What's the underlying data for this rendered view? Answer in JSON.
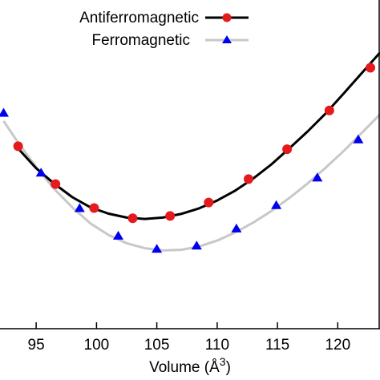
{
  "chart_data": {
    "type": "line",
    "xlabel": "Volume (Å",
    "xlabel_sup": "3",
    "xlabel_close": ")",
    "ylabel": "",
    "xlim": [
      92,
      123.5
    ],
    "ylim": [
      0,
      1
    ],
    "xticks": [
      95,
      100,
      105,
      110,
      115,
      120
    ],
    "legend_position": "top-center",
    "grid": false,
    "series": [
      {
        "name": "Antiferromagnetic",
        "line_color": "#000000",
        "marker": "circle",
        "marker_color": "#e41a1c",
        "points": [
          {
            "x": 93.5,
            "y": 0.555
          },
          {
            "x": 96.6,
            "y": 0.44
          },
          {
            "x": 99.8,
            "y": 0.367
          },
          {
            "x": 103.0,
            "y": 0.336
          },
          {
            "x": 106.1,
            "y": 0.343
          },
          {
            "x": 109.3,
            "y": 0.384
          },
          {
            "x": 112.6,
            "y": 0.455
          },
          {
            "x": 115.8,
            "y": 0.546
          },
          {
            "x": 119.3,
            "y": 0.664
          },
          {
            "x": 122.7,
            "y": 0.794
          }
        ],
        "curve": [
          {
            "x": 93.5,
            "y": 0.548
          },
          {
            "x": 95.0,
            "y": 0.488
          },
          {
            "x": 96.5,
            "y": 0.441
          },
          {
            "x": 98.0,
            "y": 0.4
          },
          {
            "x": 99.5,
            "y": 0.369
          },
          {
            "x": 101.0,
            "y": 0.35
          },
          {
            "x": 102.5,
            "y": 0.338
          },
          {
            "x": 104.0,
            "y": 0.334
          },
          {
            "x": 105.5,
            "y": 0.338
          },
          {
            "x": 107.0,
            "y": 0.349
          },
          {
            "x": 108.5,
            "y": 0.366
          },
          {
            "x": 110.0,
            "y": 0.39
          },
          {
            "x": 111.5,
            "y": 0.42
          },
          {
            "x": 113.0,
            "y": 0.457
          },
          {
            "x": 114.5,
            "y": 0.5
          },
          {
            "x": 116.0,
            "y": 0.549
          },
          {
            "x": 117.5,
            "y": 0.6
          },
          {
            "x": 119.0,
            "y": 0.655
          },
          {
            "x": 120.5,
            "y": 0.716
          },
          {
            "x": 122.0,
            "y": 0.778
          },
          {
            "x": 123.5,
            "y": 0.84
          }
        ]
      },
      {
        "name": "Ferromagnetic",
        "line_color": "#c8c8c8",
        "marker": "triangle",
        "marker_color": "#0000ee",
        "points": [
          {
            "x": 92.3,
            "y": 0.656
          },
          {
            "x": 95.4,
            "y": 0.474
          },
          {
            "x": 98.6,
            "y": 0.366
          },
          {
            "x": 101.8,
            "y": 0.282
          },
          {
            "x": 105.0,
            "y": 0.242
          },
          {
            "x": 108.3,
            "y": 0.252
          },
          {
            "x": 111.6,
            "y": 0.304
          },
          {
            "x": 114.9,
            "y": 0.375
          },
          {
            "x": 118.3,
            "y": 0.459
          },
          {
            "x": 121.7,
            "y": 0.575
          }
        ],
        "curve": [
          {
            "x": 92.3,
            "y": 0.632
          },
          {
            "x": 93.5,
            "y": 0.566
          },
          {
            "x": 95.0,
            "y": 0.492
          },
          {
            "x": 96.5,
            "y": 0.425
          },
          {
            "x": 98.0,
            "y": 0.369
          },
          {
            "x": 99.5,
            "y": 0.32
          },
          {
            "x": 101.0,
            "y": 0.285
          },
          {
            "x": 102.5,
            "y": 0.26
          },
          {
            "x": 104.0,
            "y": 0.245
          },
          {
            "x": 105.5,
            "y": 0.238
          },
          {
            "x": 107.0,
            "y": 0.24
          },
          {
            "x": 108.5,
            "y": 0.25
          },
          {
            "x": 110.0,
            "y": 0.268
          },
          {
            "x": 111.5,
            "y": 0.293
          },
          {
            "x": 113.0,
            "y": 0.323
          },
          {
            "x": 114.5,
            "y": 0.358
          },
          {
            "x": 116.0,
            "y": 0.398
          },
          {
            "x": 117.5,
            "y": 0.442
          },
          {
            "x": 119.0,
            "y": 0.49
          },
          {
            "x": 120.5,
            "y": 0.541
          },
          {
            "x": 122.0,
            "y": 0.596
          },
          {
            "x": 123.5,
            "y": 0.652
          }
        ]
      }
    ]
  }
}
